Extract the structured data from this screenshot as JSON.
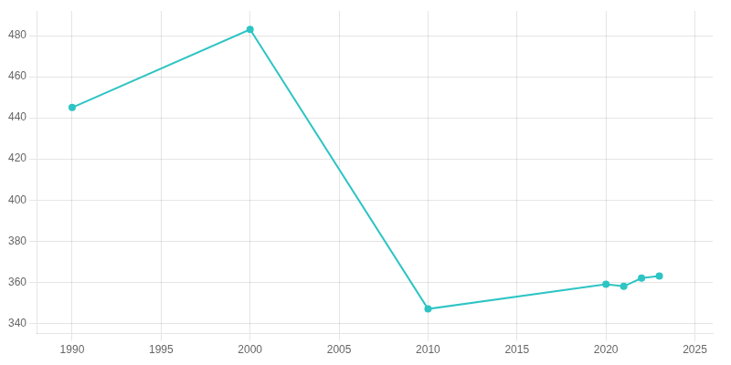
{
  "chart_data": {
    "type": "line",
    "x": [
      1990,
      2000,
      2010,
      2020,
      2021,
      2022,
      2023
    ],
    "values": [
      445,
      483,
      347,
      359,
      358,
      362,
      363
    ],
    "color": "#2EC4C4",
    "marker": "circle",
    "xlim": [
      1988,
      2026
    ],
    "xticks": [
      1990,
      1995,
      2000,
      2005,
      2010,
      2015,
      2020,
      2025
    ],
    "ylim": [
      335,
      492
    ],
    "yticks": [
      340,
      360,
      380,
      400,
      420,
      440,
      460,
      480
    ],
    "grid": true
  }
}
